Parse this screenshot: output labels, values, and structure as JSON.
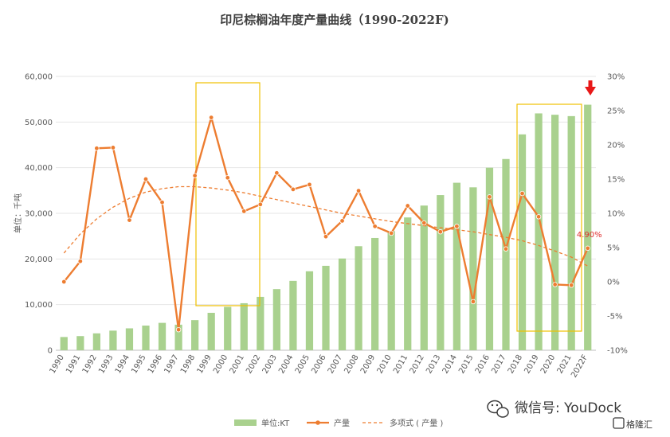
{
  "chart_data": {
    "type": "bar",
    "title": "印尼棕榈油年度产量曲线（1990-2022F)",
    "ylabel": "单位：千吨",
    "ylim": [
      0,
      60000
    ],
    "y2lim": [
      -10,
      30
    ],
    "y_ticks": [
      "0",
      "10,000",
      "20,000",
      "30,000",
      "40,000",
      "50,000",
      "60,000"
    ],
    "y2_ticks": [
      "-10%",
      "-5%",
      "0%",
      "5%",
      "10%",
      "15%",
      "20%",
      "25%",
      "30%"
    ],
    "categories": [
      "1990",
      "1991",
      "1992",
      "1993",
      "1994",
      "1995",
      "1996",
      "1997",
      "1998",
      "1999",
      "2000",
      "2001",
      "2002",
      "2003",
      "2004",
      "2005",
      "2006",
      "2007",
      "2008",
      "2009",
      "2010",
      "2011",
      "2012",
      "2013",
      "2014",
      "2015",
      "2016",
      "2017",
      "2018",
      "2019",
      "2020",
      "2021",
      "2022F"
    ],
    "series": [
      {
        "name": "单位:KT",
        "axis": "left",
        "color": "#a9d18e",
        "values": [
          2900,
          3100,
          3700,
          4300,
          4800,
          5400,
          6000,
          5600,
          6600,
          8200,
          9500,
          10300,
          11700,
          13400,
          15200,
          17300,
          18500,
          20100,
          22800,
          24600,
          26100,
          29100,
          31700,
          34000,
          36700,
          35700,
          40000,
          41900,
          47300,
          51900,
          51600,
          51300,
          53800
        ]
      },
      {
        "name": "产量",
        "axis": "right",
        "color": "#ed7d31",
        "values": [
          0.0,
          3.0,
          19.5,
          19.6,
          9.0,
          15.0,
          11.6,
          -7.0,
          15.5,
          24.0,
          15.2,
          10.3,
          11.3,
          15.9,
          13.5,
          14.2,
          6.6,
          8.9,
          13.3,
          8.1,
          7.1,
          11.1,
          8.6,
          7.3,
          8.1,
          -2.9,
          12.4,
          4.8,
          12.9,
          9.5,
          -0.4,
          -0.5,
          4.9
        ]
      },
      {
        "name": "多项式 ( 产量 )",
        "axis": "right",
        "color": "#ed7d31",
        "dashed": true,
        "values": [
          4.2,
          7.0,
          9.2,
          10.9,
          12.2,
          13.1,
          13.6,
          13.9,
          13.9,
          13.7,
          13.4,
          13.0,
          12.5,
          12.0,
          11.5,
          11.0,
          10.5,
          10.0,
          9.6,
          9.2,
          8.8,
          8.5,
          8.2,
          7.9,
          7.6,
          7.3,
          6.9,
          6.5,
          6.0,
          5.3,
          4.5,
          3.6,
          2.3
        ]
      }
    ],
    "annotations": [
      {
        "text": "4.90%",
        "category": "2022F"
      }
    ],
    "legend_position": "bottom",
    "grid": true
  },
  "watermark": {
    "text": "微信号: YouDock",
    "badge": "格隆汇"
  }
}
